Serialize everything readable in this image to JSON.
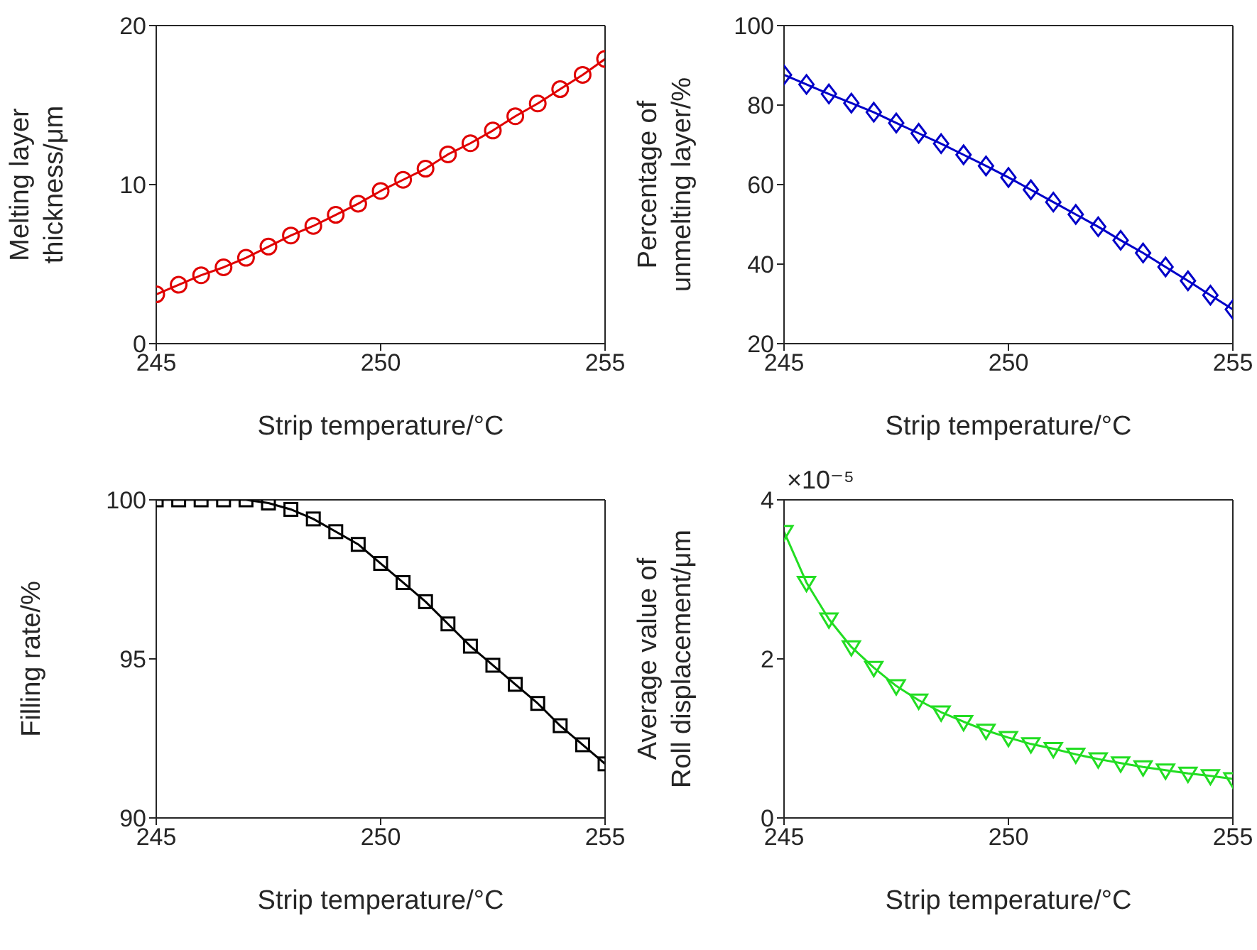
{
  "chart_data": [
    {
      "type": "line",
      "xlabel": "Strip temperature/°C",
      "ylabel": "Melting layer thickness/μm",
      "color": "#e00000",
      "marker": "circle",
      "x": [
        245,
        245.5,
        246,
        246.5,
        247,
        247.5,
        248,
        248.5,
        249,
        249.5,
        250,
        250.5,
        251,
        251.5,
        252,
        252.5,
        253,
        253.5,
        254,
        254.5,
        255
      ],
      "values": [
        3.1,
        3.7,
        4.3,
        4.8,
        5.4,
        6.1,
        6.8,
        7.4,
        8.1,
        8.8,
        9.6,
        10.3,
        11.0,
        11.9,
        12.6,
        13.4,
        14.3,
        15.1,
        16.0,
        16.9,
        17.9
      ],
      "xlim": [
        245,
        255
      ],
      "xticks": [
        245,
        250,
        255
      ],
      "ylim": [
        0,
        20
      ],
      "yticks": [
        0,
        10,
        20
      ]
    },
    {
      "type": "line",
      "xlabel": "Strip temperature/°C",
      "ylabel": "Percentage of unmelting layer/%",
      "color": "#0000c8",
      "marker": "diamond",
      "x": [
        245,
        245.5,
        246,
        246.5,
        247,
        247.5,
        248,
        248.5,
        249,
        249.5,
        250,
        250.5,
        251,
        251.5,
        252,
        252.5,
        253,
        253.5,
        254,
        254.5,
        255
      ],
      "values": [
        87.6,
        85.2,
        82.8,
        80.5,
        78.2,
        75.5,
        72.9,
        70.3,
        67.5,
        64.7,
        61.8,
        58.7,
        55.6,
        52.5,
        49.4,
        46.0,
        42.8,
        39.3,
        35.8,
        32.2,
        28.6
      ],
      "xlim": [
        245,
        255
      ],
      "xticks": [
        245,
        250,
        255
      ],
      "ylim": [
        20,
        100
      ],
      "yticks": [
        20,
        40,
        60,
        80,
        100
      ]
    },
    {
      "type": "line",
      "xlabel": "Strip temperature/°C",
      "ylabel": "Filling rate/%",
      "color": "#000000",
      "marker": "square",
      "x": [
        245,
        245.5,
        246,
        246.5,
        247,
        247.5,
        248,
        248.5,
        249,
        249.5,
        250,
        250.5,
        251,
        251.5,
        252,
        252.5,
        253,
        253.5,
        254,
        254.5,
        255
      ],
      "values": [
        100,
        100,
        100,
        100,
        100,
        99.9,
        99.7,
        99.4,
        99.0,
        98.6,
        98.0,
        97.4,
        96.8,
        96.1,
        95.4,
        94.8,
        94.2,
        93.6,
        92.9,
        92.3,
        91.7
      ],
      "xlim": [
        245,
        255
      ],
      "xticks": [
        245,
        250,
        255
      ],
      "ylim": [
        90,
        100
      ],
      "yticks": [
        90,
        95,
        100
      ]
    },
    {
      "type": "line",
      "xlabel": "Strip temperature/°C",
      "ylabel": "Average value of Roll displacement/μm",
      "color": "#22dd22",
      "marker": "triangle",
      "x": [
        245,
        245.5,
        246,
        246.5,
        247,
        247.5,
        248,
        248.5,
        249,
        249.5,
        250,
        250.5,
        251,
        251.5,
        252,
        252.5,
        253,
        253.5,
        254,
        254.5,
        255
      ],
      "values": [
        3.6,
        2.96,
        2.5,
        2.15,
        1.89,
        1.66,
        1.48,
        1.33,
        1.21,
        1.1,
        1.01,
        0.93,
        0.87,
        0.8,
        0.74,
        0.69,
        0.64,
        0.6,
        0.56,
        0.53,
        0.49
      ],
      "xlim": [
        245,
        255
      ],
      "xticks": [
        245,
        250,
        255
      ],
      "ylim": [
        0,
        4
      ],
      "yticks": [
        0,
        2,
        4
      ],
      "annotations": [
        "×10⁻⁵"
      ]
    }
  ]
}
